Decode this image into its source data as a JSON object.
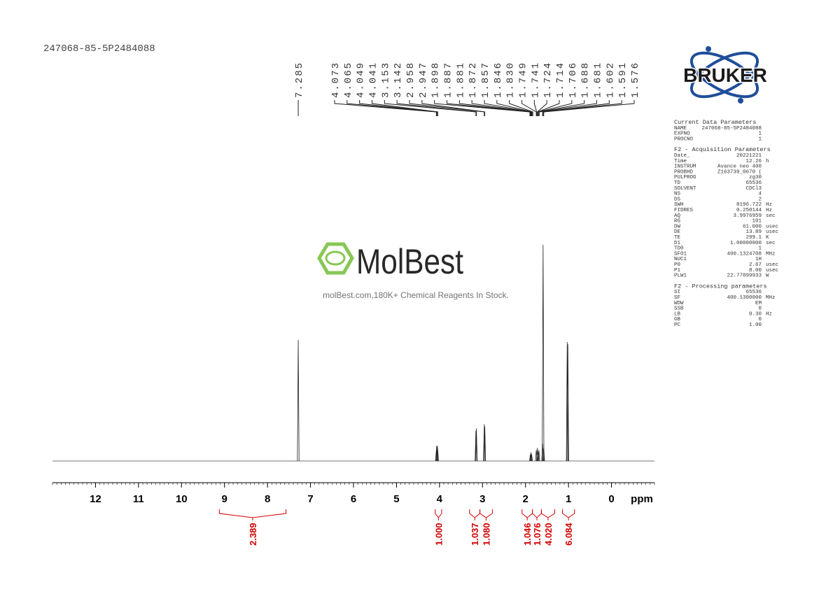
{
  "sample_id": "247068-85-5P2484088",
  "logo": {
    "text": "BRUKER"
  },
  "watermark": {
    "brand": "MolBest",
    "tagline": "molBest.com,180K+ Chemical Reagents In Stock."
  },
  "parameters": {
    "sections": [
      {
        "title": "Current Data Parameters",
        "rows": [
          [
            "NAME",
            "247068-85-5P2484088"
          ],
          [
            "EXPNO",
            "1"
          ],
          [
            "PROCNO",
            "1"
          ]
        ]
      },
      {
        "title": "F2 - Acquisition Parameters",
        "rows": [
          [
            "Date_",
            "20221221"
          ],
          [
            "Time",
            "12.26",
            "h"
          ],
          [
            "INSTRUM",
            "Avance neo 400"
          ],
          [
            "PROBHD",
            "Z163739_0670 ("
          ],
          [
            "PULPROG",
            "zg30"
          ],
          [
            "TD",
            "65536"
          ],
          [
            "SOLVENT",
            "CDCl3"
          ],
          [
            "NS",
            "4"
          ],
          [
            "DS",
            "2"
          ],
          [
            "SWH",
            "8196.722",
            "Hz"
          ],
          [
            "FIDRES",
            "0.250144",
            "Hz"
          ],
          [
            "AQ",
            "3.9976959",
            "sec"
          ],
          [
            "RG",
            "101"
          ],
          [
            "DW",
            "61.000",
            "usec"
          ],
          [
            "DE",
            "13.89",
            "usec"
          ],
          [
            "TE",
            "299.1",
            "K"
          ],
          [
            "D1",
            "1.00000000",
            "sec"
          ],
          [
            "TD0",
            "1"
          ],
          [
            "SFO1",
            "400.1324708",
            "MHz"
          ],
          [
            "NUC1",
            "1H"
          ],
          [
            "P0",
            "2.67",
            "usec"
          ],
          [
            "P1",
            "8.00",
            "usec"
          ],
          [
            "PLW1",
            "22.77899933",
            "W"
          ]
        ]
      },
      {
        "title": "F2 - Processing parameters",
        "rows": [
          [
            "SI",
            "65536"
          ],
          [
            "SF",
            "400.1300000",
            "MHz"
          ],
          [
            "WDW",
            "EM"
          ],
          [
            "SSB",
            "0"
          ],
          [
            "LB",
            "0.30",
            "Hz"
          ],
          [
            "GB",
            "0"
          ],
          [
            "PC",
            "1.00"
          ]
        ]
      }
    ]
  },
  "chart_data": {
    "type": "nmr",
    "xlabel": "ppm",
    "xlim": [
      13,
      -1
    ],
    "xticks": [
      12,
      11,
      10,
      9,
      8,
      7,
      6,
      5,
      4,
      3,
      2,
      1,
      0
    ],
    "xminor": 0.1,
    "ylim": [
      0,
      100
    ],
    "peaks": {
      "values": [
        7.285,
        4.073,
        4.065,
        4.049,
        4.041,
        3.153,
        3.142,
        2.958,
        2.947,
        1.898,
        1.887,
        1.881,
        1.872,
        1.857,
        1.846,
        1.83,
        1.749,
        1.741,
        1.724,
        1.714,
        1.706,
        1.688,
        1.681,
        1.602,
        1.591,
        1.576
      ],
      "value_labels": [
        "7.285",
        "4.073",
        "4.065",
        "4.049",
        "4.041",
        "3.153",
        "3.142",
        "2.958",
        "2.947",
        "1.898",
        "1.887",
        "1.881",
        "1.872",
        "1.857",
        "1.846",
        "1.830",
        "1.749",
        "1.741",
        "1.724",
        "1.714",
        "1.706",
        "1.688",
        "1.681",
        "1.602",
        "1.591",
        "1.576"
      ]
    },
    "spectrum": {
      "x": [
        7.285,
        4.073,
        4.065,
        4.049,
        4.041,
        3.153,
        3.142,
        2.958,
        2.947,
        1.887,
        1.872,
        1.857,
        1.749,
        1.724,
        1.706,
        1.688,
        1.602,
        1.591,
        1.576,
        1.03,
        1.015
      ],
      "values": [
        56,
        5,
        7,
        7,
        5,
        14,
        15,
        17,
        16,
        3,
        4,
        3,
        5,
        6,
        4,
        5,
        8,
        100,
        6,
        55,
        54
      ]
    },
    "integrals": {
      "ranges": [
        [
          9.12,
          7.57
        ],
        [
          4.1,
          3.95
        ],
        [
          3.3,
          3.06
        ],
        [
          3.06,
          2.77
        ],
        [
          2.08,
          1.84
        ],
        [
          1.84,
          1.63
        ],
        [
          1.63,
          1.32
        ],
        [
          1.14,
          0.86
        ]
      ],
      "values": [
        2.389,
        1,
        1.037,
        1.08,
        1.046,
        1.076,
        4.02,
        6.084
      ],
      "value_labels": [
        "2.389",
        "1.000",
        "1.037",
        "1.080",
        "1.046",
        "1.076",
        "4.020",
        "6.084"
      ]
    }
  }
}
